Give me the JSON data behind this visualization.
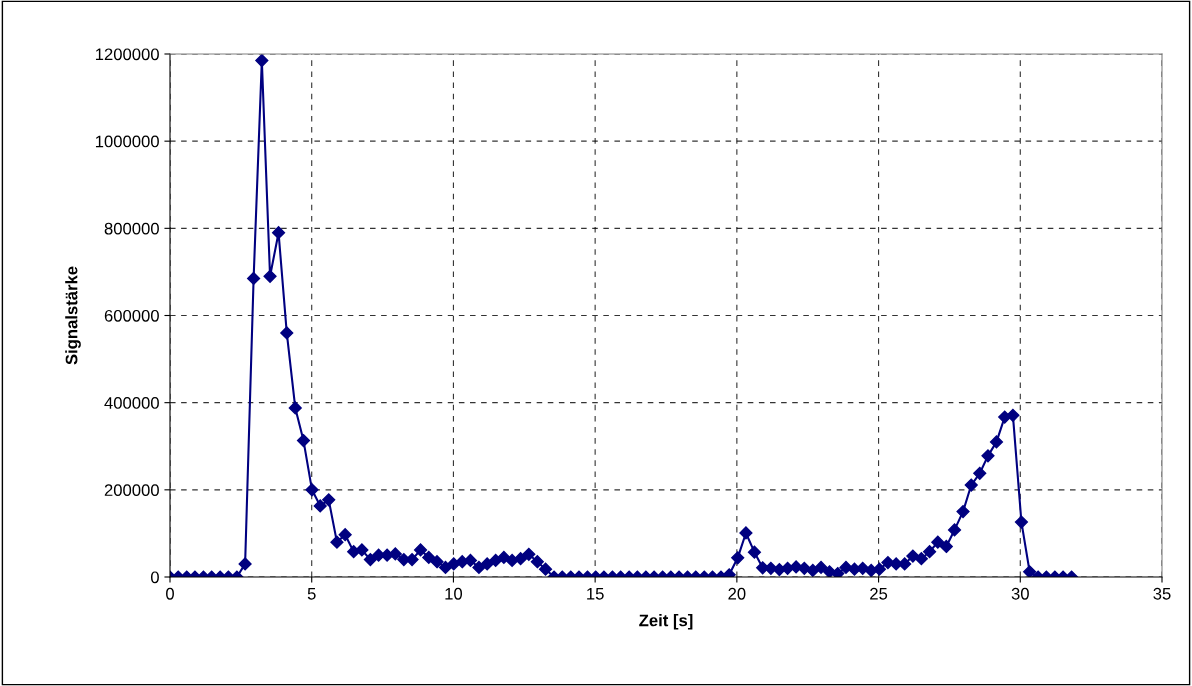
{
  "chart_data": {
    "type": "line",
    "xlabel": "Zeit [s]",
    "ylabel": "Signalstärke",
    "x": [
      0,
      0.29,
      0.59,
      0.88,
      1.18,
      1.47,
      1.77,
      2.06,
      2.36,
      2.65,
      2.95,
      3.24,
      3.53,
      3.83,
      4.12,
      4.42,
      4.71,
      5.01,
      5.3,
      5.6,
      5.89,
      6.18,
      6.48,
      6.77,
      7.07,
      7.36,
      7.66,
      7.95,
      8.25,
      8.54,
      8.84,
      9.13,
      9.42,
      9.72,
      10.01,
      10.31,
      10.6,
      10.9,
      11.19,
      11.49,
      11.78,
      12.07,
      12.37,
      12.66,
      12.96,
      13.25,
      13.55,
      13.84,
      14.14,
      14.43,
      14.73,
      15.02,
      15.31,
      15.61,
      15.9,
      16.2,
      16.49,
      16.79,
      17.08,
      17.38,
      17.67,
      17.96,
      18.26,
      18.55,
      18.85,
      19.14,
      19.44,
      19.73,
      20.03,
      20.32,
      20.62,
      20.91,
      21.2,
      21.5,
      21.79,
      22.09,
      22.38,
      22.68,
      22.97,
      23.27,
      23.56,
      23.85,
      24.15,
      24.44,
      24.74,
      25.03,
      25.33,
      25.62,
      25.92,
      26.21,
      26.51,
      26.8,
      27.09,
      27.39,
      27.68,
      27.98,
      28.27,
      28.57,
      28.86,
      29.16,
      29.45,
      29.74,
      30.04,
      30.33,
      30.63,
      30.92,
      31.22,
      31.51,
      31.81
    ],
    "series": [
      {
        "color": "#000080",
        "values": [
          0,
          0,
          0,
          0,
          0,
          0,
          0,
          0,
          0,
          30000,
          685000,
          1185000,
          690000,
          790000,
          560000,
          388000,
          313000,
          200000,
          163000,
          177000,
          80000,
          97000,
          58000,
          62000,
          40000,
          50000,
          50000,
          53000,
          40000,
          40000,
          62000,
          45000,
          35000,
          22000,
          30000,
          35000,
          38000,
          22000,
          30000,
          38000,
          45000,
          38000,
          42000,
          52000,
          35000,
          18000,
          0,
          0,
          0,
          0,
          0,
          0,
          0,
          0,
          0,
          0,
          0,
          0,
          0,
          0,
          0,
          0,
          0,
          0,
          0,
          0,
          0,
          5000,
          44000,
          101000,
          57000,
          21000,
          20000,
          17000,
          20000,
          23000,
          20000,
          15000,
          22000,
          12000,
          8000,
          22000,
          18000,
          20000,
          15000,
          18000,
          33000,
          30000,
          30000,
          48000,
          42000,
          58000,
          80000,
          70000,
          108000,
          150000,
          211000,
          238000,
          278000,
          310000,
          367000,
          371000,
          126000,
          12000,
          0,
          0,
          0,
          0,
          0
        ]
      }
    ],
    "xlim": [
      0,
      35
    ],
    "xticks": [
      0,
      5,
      10,
      15,
      20,
      25,
      30,
      35
    ],
    "ylim": [
      0,
      1200000
    ],
    "yticks": [
      0,
      200000,
      400000,
      600000,
      800000,
      1000000,
      1200000
    ],
    "grid": true,
    "marker": "diamond",
    "line_style": "solid"
  }
}
